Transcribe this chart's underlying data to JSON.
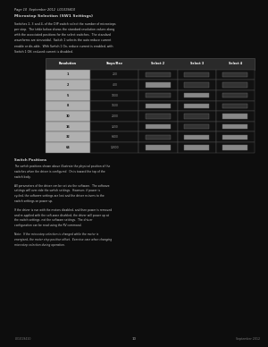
{
  "bg_color": "#0d0d0d",
  "text_color": "#c8c8c8",
  "header_line1": "Page 10  September 2012  L01019410",
  "section_title": "Microstep Selection (SW1 Settings)",
  "intro_text": "Switches 2, 3 and 4, of the DIP switch select the number of microsteps per step.  The table below shows the standard resolution values along with the associated positions for the select switches.  The standard waveforms are sinusoidal.  Switch 1 selects the auto reduce current enable or dis-able.  With Switch 1 On, reduce current is enabled, with Switch 1 Off, reduced current is disabled.",
  "table_headers": [
    "Resolution",
    "Steps/Rev",
    "Select 2",
    "Select 3",
    "Select 4"
  ],
  "table_rows": [
    [
      "1",
      "200",
      "off",
      "off",
      "off"
    ],
    [
      "2",
      "400",
      "on",
      "off",
      "off"
    ],
    [
      "5",
      "1000",
      "off",
      "on",
      "off"
    ],
    [
      "8",
      "1600",
      "on",
      "on",
      "off"
    ],
    [
      "10",
      "2000",
      "off",
      "off",
      "on"
    ],
    [
      "16",
      "3200",
      "on",
      "off",
      "on"
    ],
    [
      "32",
      "6400",
      "off",
      "on",
      "on"
    ],
    [
      "64",
      "12800",
      "on",
      "on",
      "on"
    ]
  ],
  "para1_title": "Switch Positions",
  "para1_text": "The switch positions shown above illustrate the physical position of the switches when the driver is configured.  On is toward the top of the switch body.",
  "para2_text": "All parameters of the driver can be set via the software.  The software settings will over-ride the switch settings.  However, if power is cycled, the software settings are lost and the driver re-turns to the switch settings on power up.",
  "para3_text": "If the driver is run with the motors disabled, and then power is removed and re-applied with the soft-ware disabled, the driver will power up at the switch settings, not the software settings.  The driv-er configuration can be read using the RV command.",
  "para4_text": "Note:  If the microstep selection is changed while the motor is energized, the motor step position offset.  Exercise care when changing microstep selection during operation.",
  "footer_left": "L01019410",
  "footer_center": "10",
  "footer_right": "September 2012",
  "header_bg": "#2a2a2a",
  "res_cell_bg": "#b0b0b0",
  "dark_cell_bg": "#111111",
  "ind_on_color": "#888888",
  "ind_off_color": "#333333",
  "border_color": "#555555"
}
